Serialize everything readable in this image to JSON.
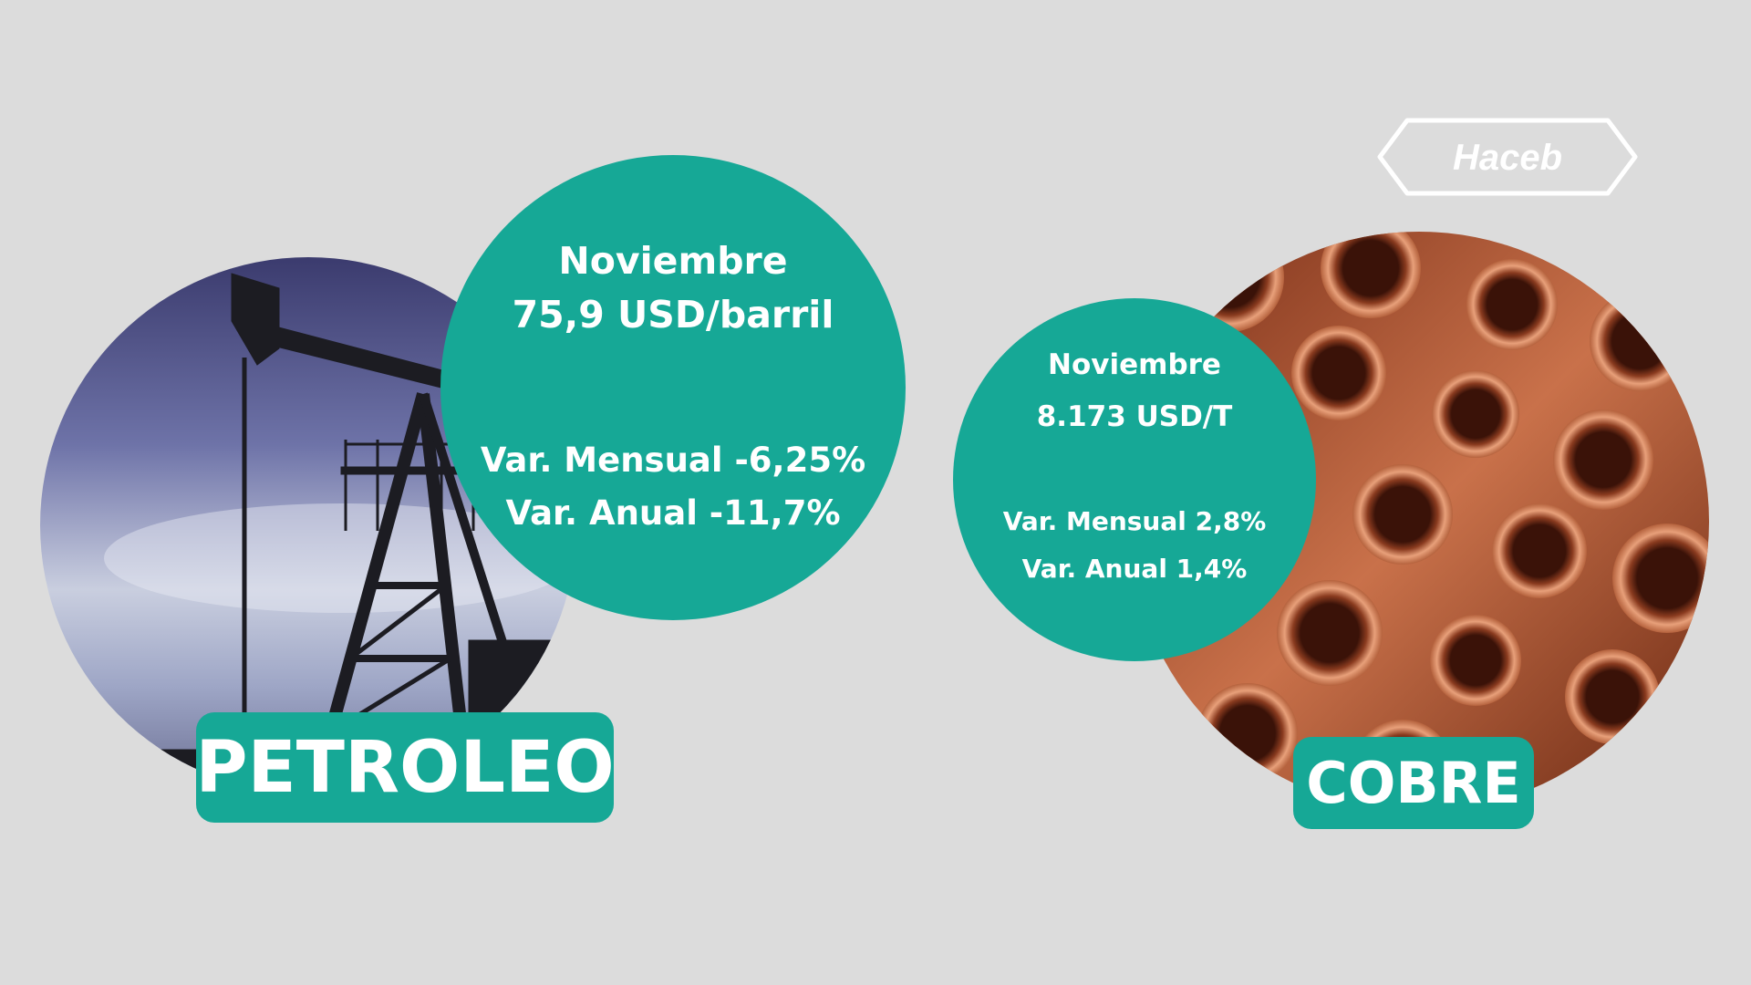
{
  "brand": {
    "logo_text": "Haceb"
  },
  "petroleo": {
    "label": "PETROLEO",
    "month": "Noviembre",
    "price": "75,9 USD/barril",
    "var_mensual": "Var. Mensual -6,25%",
    "var_anual": "Var. Anual -11,7%",
    "photo_icon": "oil-pumpjack-photo"
  },
  "cobre": {
    "label": "COBRE",
    "month": "Noviembre",
    "price": "8.173 USD/T",
    "var_mensual": "Var. Mensual 2,8%",
    "var_anual": "Var. Anual 1,4%",
    "photo_icon": "copper-pipes-photo"
  },
  "colors": {
    "background": "#dcdcdc",
    "accent": "#16a896",
    "text": "#ffffff"
  }
}
